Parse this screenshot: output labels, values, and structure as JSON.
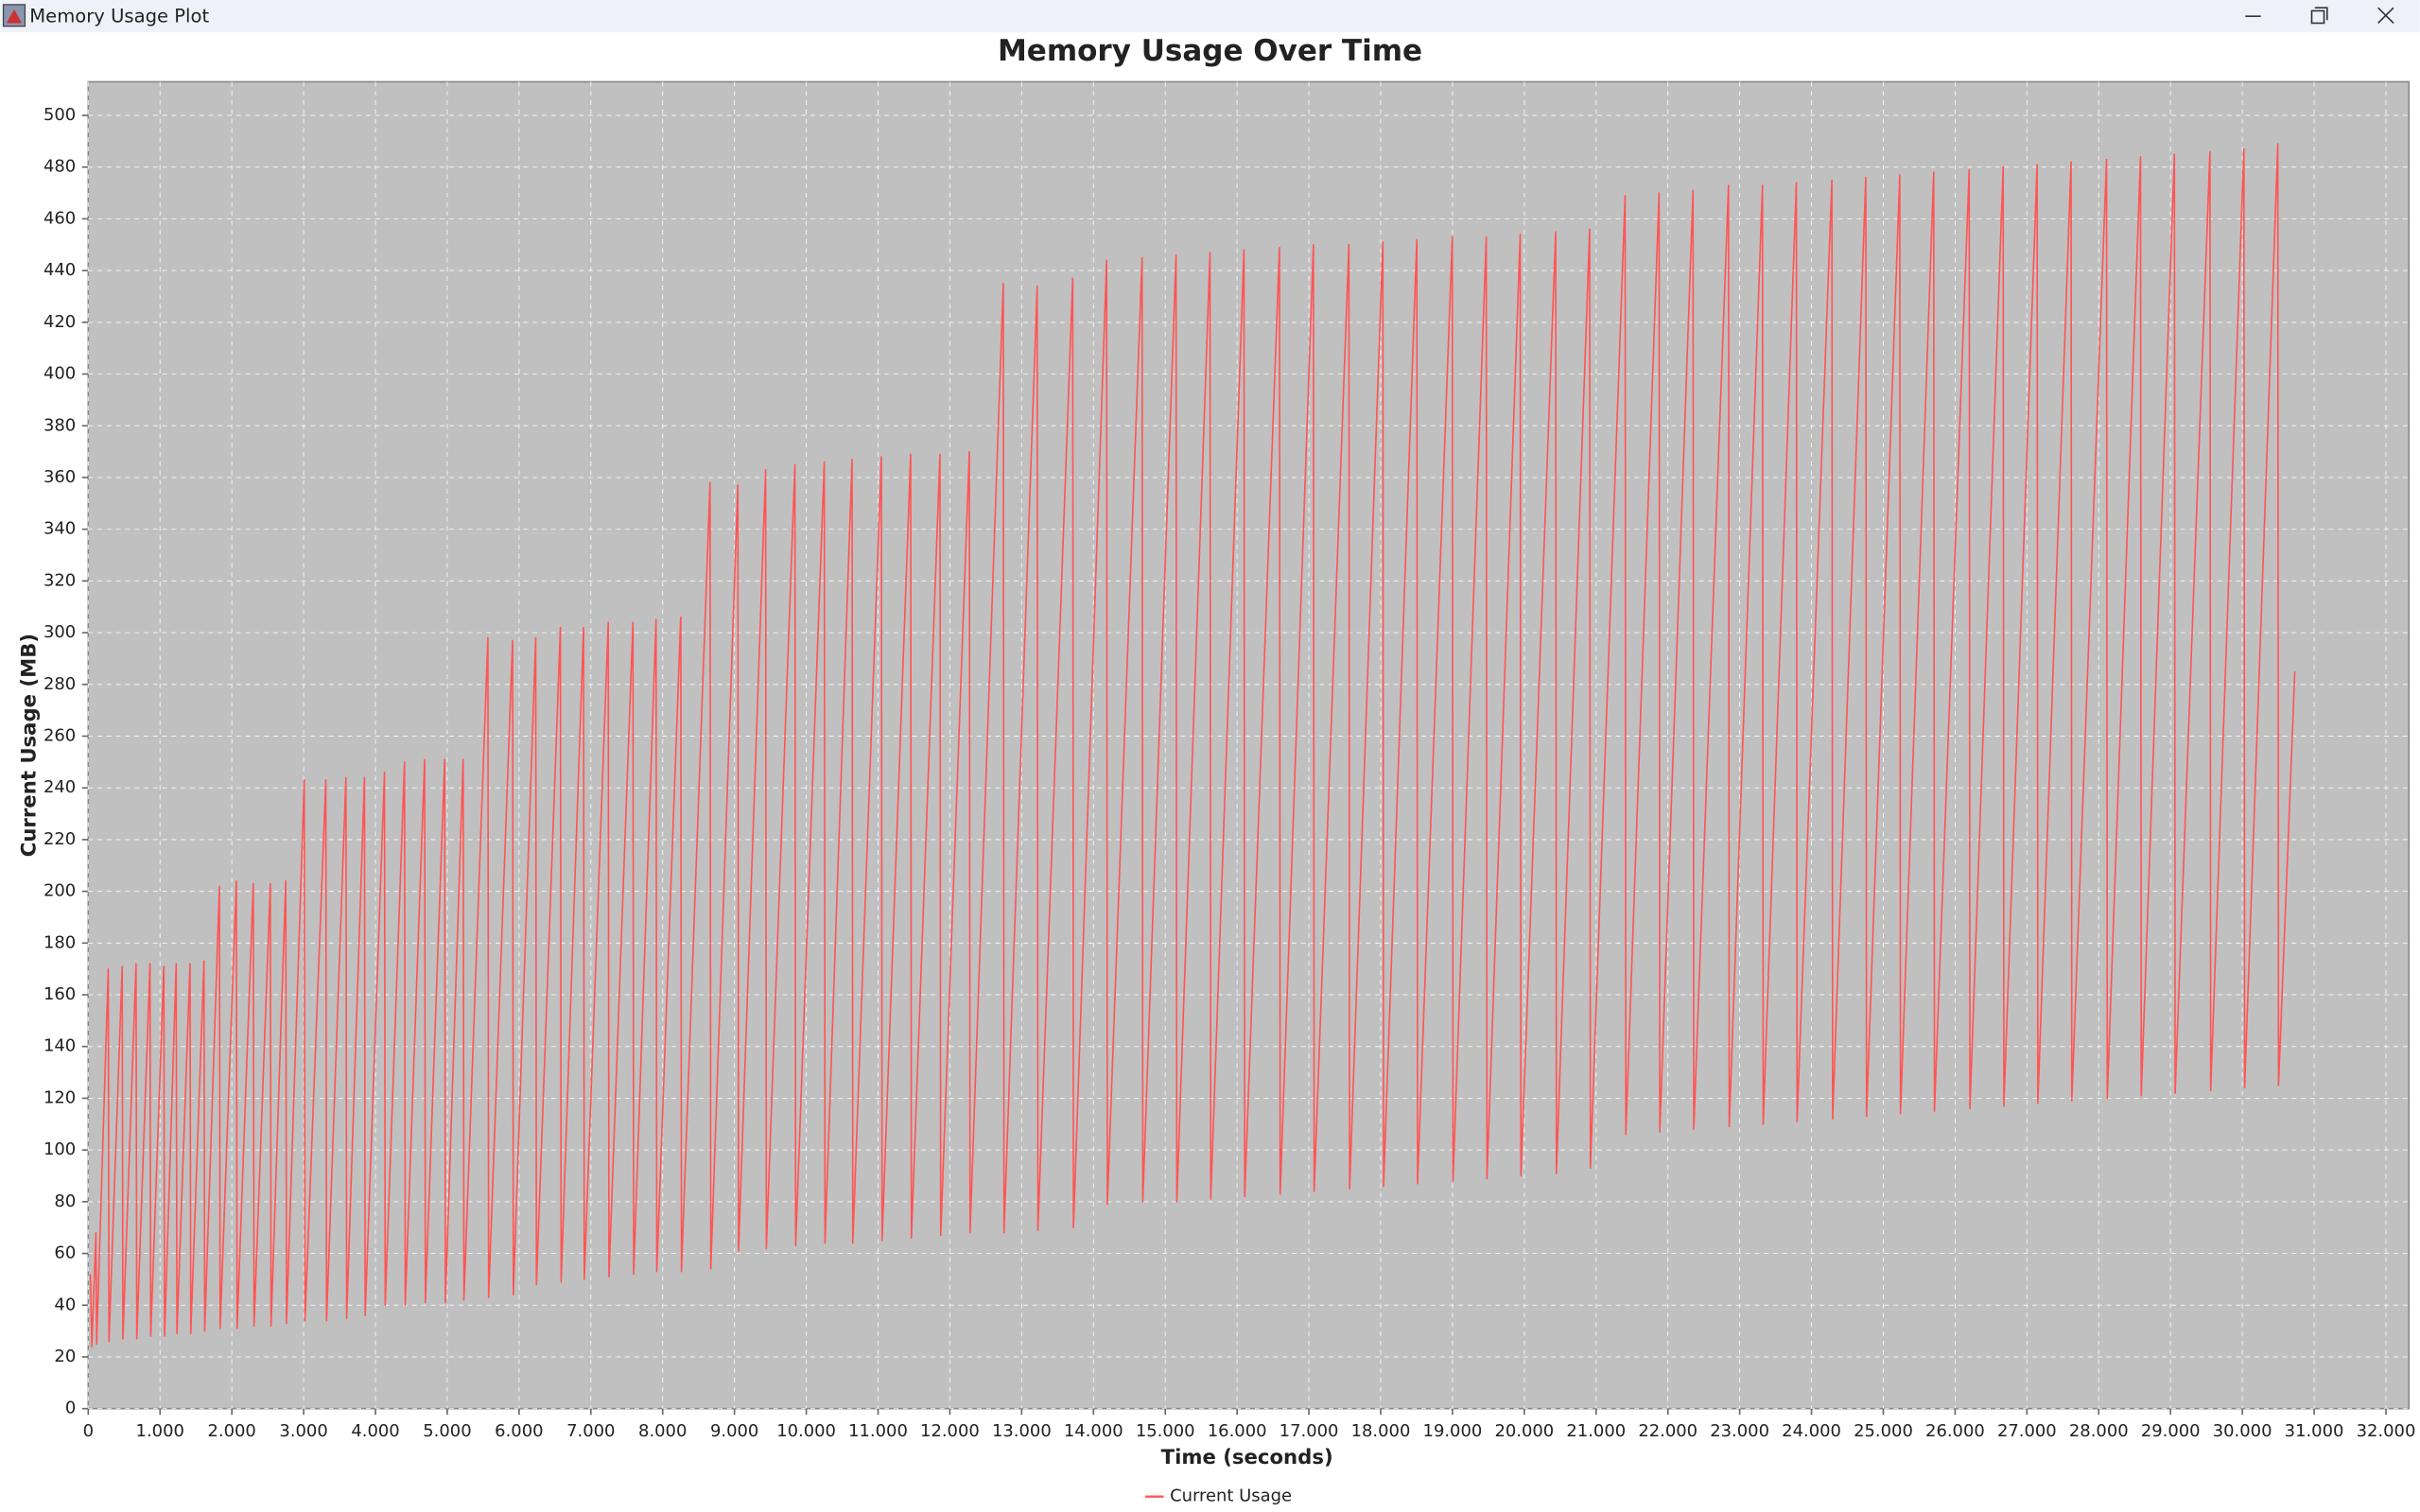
{
  "window_title": "Memory Usage Plot",
  "chart_data": {
    "type": "line",
    "title": "Memory Usage Over Time",
    "x_label": "Time (seconds)",
    "y_label": "Current Usage (MB)",
    "x": [
      30,
      50,
      107,
      117,
      279,
      289,
      473,
      483,
      666,
      676,
      860,
      870,
      1053,
      1063,
      1225,
      1235,
      1418,
      1428,
      1612,
      1622,
      1827,
      1837,
      2063,
      2073,
      2299,
      2309,
      2536,
      2546,
      2751,
      2761,
      3009,
      3019,
      3309,
      3319,
      3589,
      3599,
      3847,
      3857,
      4126,
      4136,
      4405,
      4415,
      4685,
      4695,
      4964,
      4974,
      5222,
      5232,
      5566,
      5576,
      5910,
      5920,
      6232,
      6242,
      6576,
      6586,
      6898,
      6908,
      7242,
      7252,
      7586,
      7596,
      7908,
      7918,
      8252,
      8262,
      8660,
      8670,
      9047,
      9057,
      9434,
      9444,
      9842,
      9852,
      10251,
      10261,
      10638,
      10648,
      11046,
      11056,
      11454,
      11464,
      11862,
      11872,
      12271,
      12281,
      12744,
      12754,
      13216,
      13226,
      13711,
      13721,
      14183,
      14193,
      14677,
      14687,
      15150,
      15160,
      15623,
      15633,
      16096,
      16106,
      16590,
      16600,
      17063,
      17073,
      17557,
      17567,
      18030,
      18040,
      18503,
      18513,
      18997,
      19007,
      19470,
      19480,
      19943,
      19953,
      20437,
      20447,
      20910,
      20920,
      21404,
      21414,
      21877,
      21887,
      22350,
      22360,
      22844,
      22854,
      23317,
      23327,
      23789,
      23799,
      24284,
      24294,
      24756,
      24766,
      25229,
      25239,
      25702,
      25712,
      26196,
      26206,
      26669,
      26679,
      27142,
      27152,
      27615,
      27625,
      28109,
      28119,
      28582,
      28592,
      29054,
      29064,
      29549,
      29559,
      30022,
      30032,
      30494,
      30504,
      30731
    ],
    "series": [
      {
        "name": "Current Usage",
        "color": "#ff5555",
        "values": [
          52,
          24,
          68,
          25,
          170,
          26,
          171,
          27,
          172,
          27,
          172,
          28,
          171,
          28,
          172,
          29,
          172,
          29,
          173,
          30,
          202,
          31,
          204,
          31,
          203,
          32,
          203,
          32,
          204,
          33,
          243,
          34,
          243,
          34,
          244,
          35,
          244,
          36,
          246,
          40,
          250,
          40,
          251,
          41,
          251,
          41,
          251,
          42,
          298,
          43,
          297,
          44,
          298,
          48,
          302,
          49,
          302,
          50,
          304,
          51,
          304,
          52,
          305,
          53,
          306,
          53,
          358,
          54,
          357,
          61,
          363,
          62,
          365,
          63,
          366,
          64,
          367,
          64,
          368,
          65,
          369,
          66,
          369,
          67,
          370,
          68,
          435,
          68,
          434,
          69,
          437,
          70,
          444,
          79,
          445,
          80,
          446,
          80,
          447,
          81,
          448,
          82,
          449,
          83,
          450,
          84,
          450,
          85,
          451,
          86,
          452,
          87,
          453,
          88,
          453,
          89,
          454,
          90,
          455,
          91,
          456,
          93,
          469,
          106,
          470,
          107,
          471,
          108,
          473,
          109,
          473,
          110,
          474,
          111,
          475,
          112,
          476,
          113,
          477,
          114,
          478,
          115,
          479,
          116,
          480,
          117,
          481,
          118,
          482,
          119,
          483,
          120,
          484,
          121,
          485,
          122,
          486,
          123,
          487,
          124,
          489,
          125,
          285
        ]
      }
    ],
    "xlim": [
      0,
      32320
    ],
    "ylim": [
      0,
      513
    ],
    "xticks": [
      0,
      {
        "value": 1000,
        "label": "1.000"
      },
      {
        "value": 2000,
        "label": "2.000"
      },
      {
        "value": 3000,
        "label": "3.000"
      },
      {
        "value": 4000,
        "label": "4.000"
      },
      {
        "value": 5000,
        "label": "5.000"
      },
      {
        "value": 6000,
        "label": "6.000"
      },
      {
        "value": 7000,
        "label": "7.000"
      },
      {
        "value": 8000,
        "label": "8.000"
      },
      {
        "value": 9000,
        "label": "9.000"
      },
      {
        "value": 10000,
        "label": "10.000"
      },
      {
        "value": 11000,
        "label": "11.000"
      },
      {
        "value": 12000,
        "label": "12.000"
      },
      {
        "value": 13000,
        "label": "13.000"
      },
      {
        "value": 14000,
        "label": "14.000"
      },
      {
        "value": 15000,
        "label": "15.000"
      },
      {
        "value": 16000,
        "label": "16.000"
      },
      {
        "value": 17000,
        "label": "17.000"
      },
      {
        "value": 18000,
        "label": "18.000"
      },
      {
        "value": 19000,
        "label": "19.000"
      },
      {
        "value": 20000,
        "label": "20.000"
      },
      {
        "value": 21000,
        "label": "21.000"
      },
      {
        "value": 22000,
        "label": "22.000"
      },
      {
        "value": 23000,
        "label": "23.000"
      },
      {
        "value": 24000,
        "label": "24.000"
      },
      {
        "value": 25000,
        "label": "25.000"
      },
      {
        "value": 26000,
        "label": "26.000"
      },
      {
        "value": 27000,
        "label": "27.000"
      },
      {
        "value": 28000,
        "label": "28.000"
      },
      {
        "value": 29000,
        "label": "29.000"
      },
      {
        "value": 30000,
        "label": "30.000"
      },
      {
        "value": 31000,
        "label": "31.000"
      },
      {
        "value": 32000,
        "label": "32.000"
      }
    ],
    "yticks": [
      0,
      20,
      40,
      60,
      80,
      100,
      120,
      140,
      160,
      180,
      200,
      220,
      240,
      260,
      280,
      300,
      320,
      340,
      360,
      380,
      400,
      420,
      440,
      460,
      480,
      500
    ],
    "grid": true,
    "background": "#c0c0c0",
    "legend": "bottom"
  }
}
